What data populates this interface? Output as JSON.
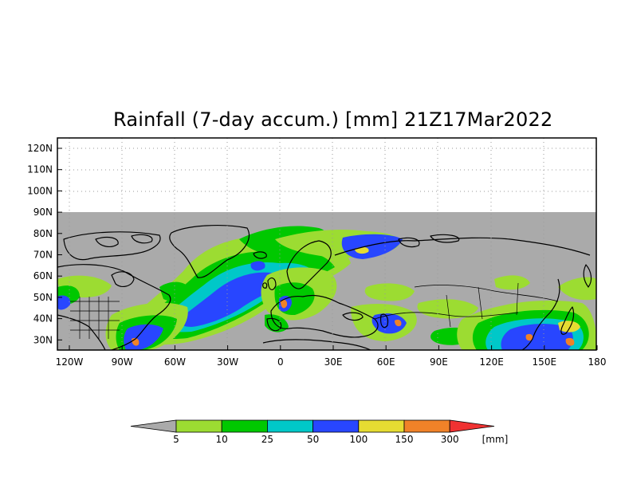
{
  "title": "Rainfall (7-day accum.) [mm] 21Z17Mar2022",
  "map": {
    "lat_labels": [
      "120N",
      "110N",
      "100N",
      "90N",
      "80N",
      "70N",
      "60N",
      "50N",
      "40N",
      "30N"
    ],
    "lon_labels": [
      "120W",
      "90W",
      "60W",
      "30W",
      "0",
      "30E",
      "60E",
      "90E",
      "120E",
      "150E",
      "180"
    ],
    "lat_range": [
      25,
      125
    ],
    "lon_range": [
      -125,
      180
    ],
    "no_data_color": "#aaaaaa",
    "no_data_above_lat": 90
  },
  "legend": {
    "thresholds": [
      "5",
      "10",
      "25",
      "50",
      "100",
      "150",
      "300"
    ],
    "unit": "[mm]",
    "colors": [
      "#9cdc32",
      "#00c800",
      "#00c8c8",
      "#2846ff",
      "#e6dc32",
      "#f08228",
      "#f03232"
    ],
    "below_color": "#aaaaaa"
  }
}
